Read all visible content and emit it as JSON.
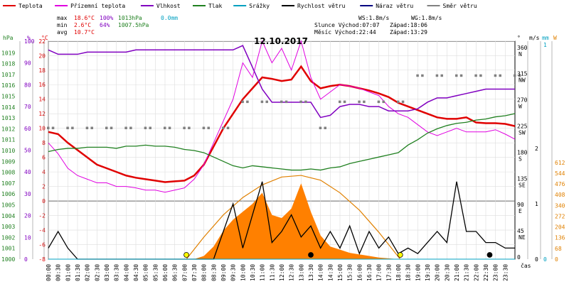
{
  "chart_data": {
    "type": "line",
    "title": "12.10.2017",
    "legend": [
      {
        "label": "Teplota",
        "color": "#e00000"
      },
      {
        "label": "Přízemní teplota",
        "color": "#e000e0"
      },
      {
        "label": "Vlhkost",
        "color": "#8000c0"
      },
      {
        "label": "Tlak",
        "color": "#208020"
      },
      {
        "label": "Srážky",
        "color": "#00a0c0"
      },
      {
        "label": "Rychlost větru",
        "color": "#000000"
      },
      {
        "label": "Náraz větru",
        "color": "#000080"
      },
      {
        "label": "Směr větru",
        "color": "#808080"
      }
    ],
    "stats": {
      "max_label": "max",
      "max_temp": "18.6°C",
      "max_hum": "100%",
      "max_press": "1013hPa",
      "max_rain": "0.0mm",
      "min_label": "min",
      "min_temp": "2.6°C",
      "min_hum": "64%",
      "min_press": "1007.5hPa",
      "avg_label": "avg",
      "avg_temp": "10.7°C"
    },
    "wind_info": {
      "ws": "WS:1.8m/s",
      "wg": "WG:1.8m/s"
    },
    "sun_info": {
      "rise": "Slunce Východ:07:07",
      "set": "Západ:18:06"
    },
    "moon_info": {
      "rise": "Měsíc  Východ:22:44",
      "set": "Západ:13:29"
    },
    "xlabel": "čas",
    "x_ticks": [
      "00:00",
      "00:30",
      "01:00",
      "01:30",
      "02:00",
      "02:30",
      "03:00",
      "03:30",
      "04:00",
      "04:30",
      "05:00",
      "05:30",
      "06:00",
      "06:30",
      "07:00",
      "07:30",
      "08:00",
      "08:30",
      "09:00",
      "09:30",
      "10:00",
      "10:30",
      "11:00",
      "11:30",
      "12:00",
      "12:30",
      "13:00",
      "13:30",
      "14:00",
      "14:30",
      "15:00",
      "15:30",
      "16:00",
      "16:30",
      "17:00",
      "17:30",
      "18:00",
      "18:30",
      "19:00",
      "19:30",
      "20:00",
      "20:30",
      "21:00",
      "21:30",
      "22:00",
      "22:30",
      "23:00",
      "23:30"
    ],
    "axes": {
      "hpa_label": "hPa",
      "hpa_ticks": [
        1000,
        1001,
        1002,
        1003,
        1004,
        1005,
        1006,
        1007,
        1008,
        1009,
        1010,
        1011,
        1012,
        1013,
        1014,
        1015,
        1016,
        1017,
        1018,
        1019
      ],
      "pct_label": "%",
      "pct_ticks": [
        0,
        10,
        20,
        30,
        40,
        50,
        60,
        70,
        80,
        90,
        100
      ],
      "c_label": "°C",
      "c_ticks": [
        -8,
        -6,
        -4,
        -2,
        0,
        2,
        4,
        6,
        8,
        10,
        12,
        14,
        16,
        18,
        20,
        22
      ],
      "deg_label": "°",
      "deg_ticks": [
        0,
        45,
        90,
        135,
        180,
        225,
        270,
        315,
        360
      ],
      "dir_ticks": [
        "",
        "NE",
        "E",
        "SE",
        "S",
        "SW",
        "W",
        "NW",
        "N"
      ],
      "ms_label": "m/s",
      "ms_ticks": [
        0,
        1,
        2
      ],
      "mm_label": "mm",
      "mm_ticks": [
        0,
        1
      ],
      "w_label": "W",
      "w_ticks": [
        0,
        68,
        136,
        204,
        272,
        340,
        408,
        476,
        544,
        612
      ]
    },
    "units": {
      "temperature": "°C",
      "humidity": "%",
      "pressure": "hPa",
      "wind": "m/s",
      "wind_direction": "°",
      "solar": "W",
      "time": "hours"
    },
    "series": [
      {
        "name": "Teplota",
        "color": "#e00000",
        "x": [
          0,
          0.5,
          1,
          1.5,
          2,
          2.5,
          3,
          3.5,
          4,
          4.5,
          5,
          5.5,
          6,
          6.5,
          7,
          7.5,
          8,
          8.5,
          9,
          9.5,
          10,
          10.5,
          11,
          11.5,
          12,
          12.5,
          13,
          13.5,
          14,
          14.5,
          15,
          15.5,
          16,
          16.5,
          17,
          17.5,
          18,
          18.5,
          19,
          19.5,
          20,
          20.5,
          21,
          21.5,
          22,
          22.5,
          23,
          23.5,
          24
        ],
        "y": [
          9.5,
          9.2,
          8,
          7,
          6,
          5,
          4.5,
          4,
          3.5,
          3.2,
          3,
          2.8,
          2.6,
          2.7,
          2.8,
          3.5,
          5,
          7.5,
          10,
          12,
          14,
          15.5,
          17,
          16.8,
          16.5,
          16.7,
          18.5,
          16.5,
          15.5,
          15.8,
          16,
          15.8,
          15.5,
          15.2,
          14.8,
          14.3,
          13.5,
          13,
          12.5,
          12,
          11.5,
          11.3,
          11.3,
          11.5,
          10.8,
          10.7,
          10.7,
          10.6,
          10.3
        ]
      },
      {
        "name": "Přízemní teplota",
        "color": "#e000e0",
        "x": [
          0,
          0.5,
          1,
          1.5,
          2,
          2.5,
          3,
          3.5,
          4,
          4.5,
          5,
          5.5,
          6,
          6.5,
          7,
          7.5,
          8,
          8.5,
          9,
          9.5,
          10,
          10.5,
          11,
          11.5,
          12,
          12.5,
          13,
          13.5,
          14,
          14.5,
          15,
          15.5,
          16,
          16.5,
          17,
          17.5,
          18,
          18.5,
          19,
          19.5,
          20,
          20.5,
          21,
          21.5,
          22,
          22.5,
          23,
          23.5,
          24
        ],
        "y": [
          8,
          6.5,
          4.5,
          3.5,
          3,
          2.5,
          2.5,
          2,
          2,
          1.8,
          1.5,
          1.5,
          1.2,
          1.5,
          1.8,
          3,
          5,
          8,
          11,
          14,
          19,
          17,
          22,
          19,
          21,
          18,
          22,
          17,
          14,
          15,
          16,
          15.8,
          15.5,
          15,
          14.5,
          13,
          12,
          11.5,
          10.5,
          9.5,
          9,
          9.5,
          10,
          9.5,
          9.5,
          9.5,
          9.8,
          9.2,
          8.5
        ]
      },
      {
        "name": "Vlhkost",
        "color": "#8000c0",
        "x": [
          0,
          0.5,
          1,
          1.5,
          2,
          2.5,
          3,
          3.5,
          4,
          4.5,
          5,
          5.5,
          6,
          6.5,
          7,
          7.5,
          8,
          8.5,
          9,
          9.5,
          10,
          10.5,
          11,
          11.5,
          12,
          12.5,
          13,
          13.5,
          14,
          14.5,
          15,
          15.5,
          16,
          16.5,
          17,
          17.5,
          18,
          18.5,
          19,
          19.5,
          20,
          20.5,
          21,
          21.5,
          22,
          22.5,
          23,
          23.5,
          24
        ],
        "y": [
          96,
          94,
          94,
          94,
          95,
          95,
          95,
          95,
          95,
          96,
          96,
          96,
          96,
          96,
          96,
          96,
          96,
          96,
          96,
          96,
          98,
          88,
          78,
          72,
          72,
          72,
          72,
          72,
          65,
          66,
          70,
          71,
          71,
          70,
          70,
          68,
          68,
          68,
          69,
          72,
          74,
          74,
          75,
          76,
          77,
          78,
          78,
          78,
          78
        ]
      },
      {
        "name": "Tlak",
        "color": "#208020",
        "x": [
          0,
          0.5,
          1,
          1.5,
          2,
          2.5,
          3,
          3.5,
          4,
          4.5,
          5,
          5.5,
          6,
          6.5,
          7,
          7.5,
          8,
          8.5,
          9,
          9.5,
          10,
          10.5,
          11,
          11.5,
          12,
          12.5,
          13,
          13.5,
          14,
          14.5,
          15,
          15.5,
          16,
          16.5,
          17,
          17.5,
          18,
          18.5,
          19,
          19.5,
          20,
          20.5,
          21,
          21.5,
          22,
          22.5,
          23,
          23.5,
          24
        ],
        "y": [
          1009.9,
          1010.1,
          1010.2,
          1010.2,
          1010.3,
          1010.3,
          1010.3,
          1010.2,
          1010.4,
          1010.4,
          1010.5,
          1010.4,
          1010.4,
          1010.3,
          1010.1,
          1010.0,
          1009.8,
          1009.4,
          1009.0,
          1008.6,
          1008.4,
          1008.6,
          1008.5,
          1008.4,
          1008.3,
          1008.2,
          1008.2,
          1008.3,
          1008.2,
          1008.4,
          1008.5,
          1008.8,
          1009.0,
          1009.2,
          1009.4,
          1009.6,
          1009.8,
          1010.5,
          1011.0,
          1011.6,
          1012.0,
          1012.3,
          1012.5,
          1012.6,
          1012.8,
          1012.9,
          1013.1,
          1013.2,
          1013.4
        ]
      },
      {
        "name": "Rychlost větru",
        "color": "#000000",
        "x": [
          0,
          0.5,
          1,
          1.5,
          2,
          2.5,
          3,
          3.5,
          4,
          4.5,
          5,
          5.5,
          6,
          6.5,
          7,
          7.5,
          8,
          8.5,
          9,
          9.5,
          10,
          10.5,
          11,
          11.5,
          12,
          12.5,
          13,
          13.5,
          14,
          14.5,
          15,
          15.5,
          16,
          16.5,
          17,
          17.5,
          18,
          18.5,
          19,
          19.5,
          20,
          20.5,
          21,
          21.5,
          22,
          22.5,
          23,
          23.5,
          24
        ],
        "y": [
          0.2,
          0.5,
          0.2,
          0,
          0,
          0,
          0,
          0,
          0,
          0,
          0,
          0,
          0,
          0,
          0,
          0,
          0,
          0,
          0.5,
          1.0,
          0.2,
          0.8,
          1.4,
          0.3,
          0.5,
          0.8,
          0.4,
          0.6,
          0.2,
          0.5,
          0.2,
          0.6,
          0.1,
          0.5,
          0.2,
          0.4,
          0.1,
          0.2,
          0.1,
          0.3,
          0.5,
          0.3,
          1.4,
          0.5,
          0.5,
          0.3,
          0.3,
          0.2,
          0.2
        ]
      },
      {
        "name": "Směr větru",
        "color": "#808080",
        "x": [
          0,
          1,
          2,
          3,
          4,
          5,
          6,
          7,
          8,
          9,
          10,
          11,
          12,
          13,
          14,
          15,
          16,
          17,
          18,
          19,
          20,
          21,
          22,
          23,
          24
        ],
        "y": [
          225,
          225,
          225,
          225,
          225,
          225,
          225,
          225,
          225,
          225,
          270,
          270,
          270,
          270,
          225,
          270,
          270,
          270,
          270,
          315,
          315,
          315,
          315,
          315,
          315
        ]
      },
      {
        "name": "Srážky",
        "color": "#00a0c0",
        "x": [
          0,
          24
        ],
        "y": [
          0,
          0
        ]
      }
    ],
    "solar_series": {
      "name": "Solární radiace",
      "color": "#ff8000",
      "x": [
        7.5,
        8,
        8.5,
        9,
        9.5,
        10,
        10.5,
        11,
        11.5,
        12,
        12.5,
        13,
        13.5,
        14,
        14.5,
        15,
        15.5,
        16,
        16.5,
        17,
        17.5,
        18
      ],
      "y": [
        0,
        20,
        80,
        180,
        250,
        300,
        350,
        420,
        280,
        260,
        320,
        480,
        300,
        150,
        80,
        60,
        40,
        30,
        20,
        10,
        5,
        0
      ]
    },
    "sun_curve": {
      "name": "Teoretická radiace",
      "color": "#e08000",
      "x": [
        7.1,
        8,
        9,
        10,
        11,
        12,
        13,
        14,
        15,
        16,
        17,
        18.1
      ],
      "y": [
        0,
        140,
        280,
        390,
        470,
        520,
        530,
        500,
        420,
        310,
        170,
        0
      ]
    },
    "events": [
      {
        "name": "sunrise",
        "x": 7.1,
        "color": "#ffff00"
      },
      {
        "name": "sunset",
        "x": 18.1,
        "color": "#ffff00"
      },
      {
        "name": "moonset",
        "x": 13.5,
        "color": "#000000"
      },
      {
        "name": "moonrise",
        "x": 22.7,
        "color": "#000000"
      }
    ],
    "grid": true
  }
}
